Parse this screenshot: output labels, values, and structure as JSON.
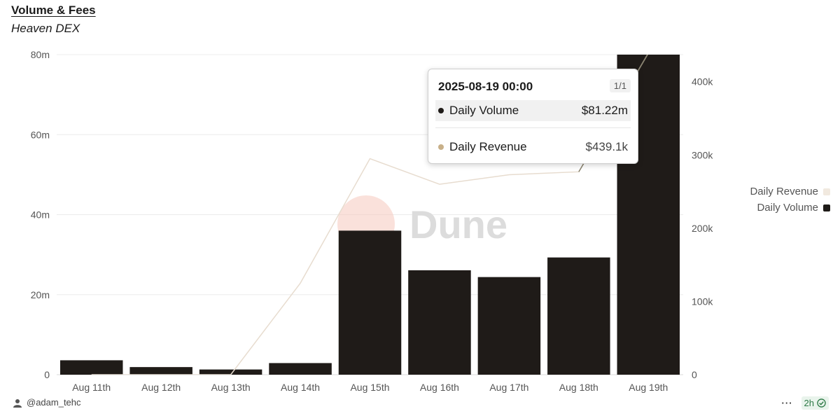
{
  "header": {
    "title": "Volume & Fees",
    "subtitle": "Heaven DEX"
  },
  "chart_data": {
    "type": "bar",
    "title": "Volume & Fees",
    "subtitle": "Heaven DEX",
    "categories": [
      "Aug 11th",
      "Aug 12th",
      "Aug 13th",
      "Aug 14th",
      "Aug 15th",
      "Aug 16th",
      "Aug 17th",
      "Aug 18th",
      "Aug 19th"
    ],
    "series": [
      {
        "name": "Daily Volume",
        "type": "bar",
        "axis": "left",
        "color": "#1f1b18",
        "values": [
          3.6,
          1.9,
          1.3,
          2.9,
          36.0,
          26.1,
          24.4,
          29.3,
          81.22
        ]
      },
      {
        "name": "Daily Revenue",
        "type": "line",
        "axis": "right",
        "color": "#e7dccf",
        "values": [
          0,
          0,
          0,
          125000,
          295000,
          260000,
          273000,
          277000,
          439100
        ]
      }
    ],
    "left_axis": {
      "ylim": [
        0,
        80
      ],
      "ticks": [
        "0",
        "20m",
        "40m",
        "60m",
        "80m"
      ],
      "tick_values": [
        0,
        20,
        40,
        60,
        80
      ]
    },
    "right_axis": {
      "ylim": [
        0,
        437000
      ],
      "ticks": [
        "0",
        "100k",
        "200k",
        "300k",
        "400k"
      ],
      "tick_values": [
        0,
        100000,
        200000,
        300000,
        400000
      ]
    },
    "grid": true,
    "legend_position": "right",
    "xlabel": "",
    "ylabel": ""
  },
  "tooltip": {
    "date": "2025-08-19 00:00",
    "page": "1/1",
    "rows": [
      {
        "label": "Daily Volume",
        "value": "$81.22m",
        "color": "#1f1b18"
      },
      {
        "label": "Daily Revenue",
        "value": "$439.1k",
        "color": "#c8b089"
      }
    ]
  },
  "legend": [
    {
      "label": "Daily Revenue",
      "color": "#f1e9df"
    },
    {
      "label": "Daily Volume",
      "color": "#1f1b18"
    }
  ],
  "watermark": {
    "text": "Dune"
  },
  "footer": {
    "user": "@adam_tehc",
    "age": "2h",
    "more": "···"
  }
}
